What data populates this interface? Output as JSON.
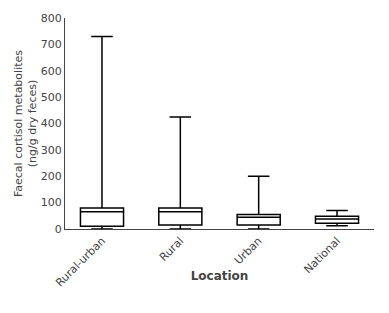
{
  "chart_data": {
    "type": "box",
    "categories": [
      "Rural-urban",
      "Rural",
      "Urban",
      "National"
    ],
    "boxes": [
      {
        "q1": 10,
        "median": 65,
        "q3": 80,
        "whisker_low": 0,
        "whisker_high": 730
      },
      {
        "q1": 15,
        "median": 65,
        "q3": 80,
        "whisker_low": 0,
        "whisker_high": 425
      },
      {
        "q1": 15,
        "median": 45,
        "q3": 55,
        "whisker_low": 0,
        "whisker_high": 200
      },
      {
        "q1": 22,
        "median": 38,
        "q3": 48,
        "whisker_low": 12,
        "whisker_high": 70
      }
    ],
    "ylabel": "Faecal cortisol metabolites\n(ng/g dry feces)",
    "xlabel": "Location",
    "ylim": [
      0,
      800
    ],
    "yticks": [
      0,
      100,
      200,
      300,
      400,
      500,
      600,
      700,
      800
    ],
    "color": "#000000",
    "grid": false
  }
}
